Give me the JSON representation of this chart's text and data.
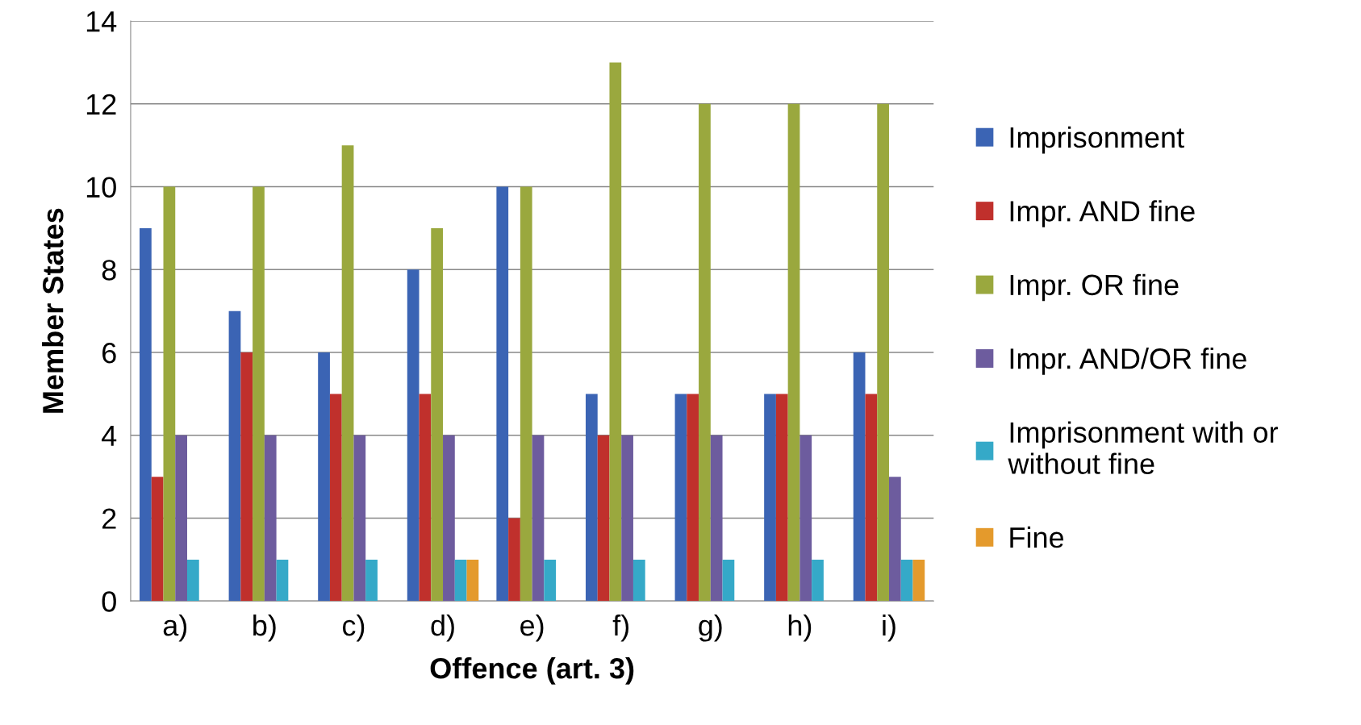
{
  "chart_data": {
    "type": "bar",
    "xlabel": "Offence (art. 3)",
    "ylabel": "Member States",
    "categories": [
      "a)",
      "b)",
      "c)",
      "d)",
      "e)",
      "f)",
      "g)",
      "h)",
      "i)"
    ],
    "series": [
      {
        "name": "Imprisonment",
        "color": "#3b64b4",
        "values": [
          9,
          7,
          6,
          8,
          10,
          5,
          5,
          5,
          6
        ]
      },
      {
        "name": "Impr. AND fine",
        "color": "#c0302c",
        "values": [
          3,
          6,
          5,
          5,
          2,
          4,
          5,
          5,
          5
        ]
      },
      {
        "name": "Impr. OR fine",
        "color": "#9aa83e",
        "values": [
          10,
          10,
          11,
          9,
          10,
          13,
          12,
          12,
          12
        ]
      },
      {
        "name": "Impr. AND/OR fine",
        "color": "#6d5c9e",
        "values": [
          4,
          4,
          4,
          4,
          4,
          4,
          4,
          4,
          3
        ]
      },
      {
        "name": "Imprisonment with or\nwithout fine",
        "color": "#35a9c8",
        "values": [
          1,
          1,
          1,
          1,
          1,
          1,
          1,
          1,
          1
        ]
      },
      {
        "name": "Fine",
        "color": "#e49a2c",
        "values": [
          0,
          0,
          0,
          1,
          0,
          0,
          0,
          0,
          1
        ]
      }
    ],
    "ylim": [
      0,
      14
    ],
    "yticks": [
      0,
      2,
      4,
      6,
      8,
      10,
      12,
      14
    ],
    "grid": "y",
    "legend": "right"
  }
}
